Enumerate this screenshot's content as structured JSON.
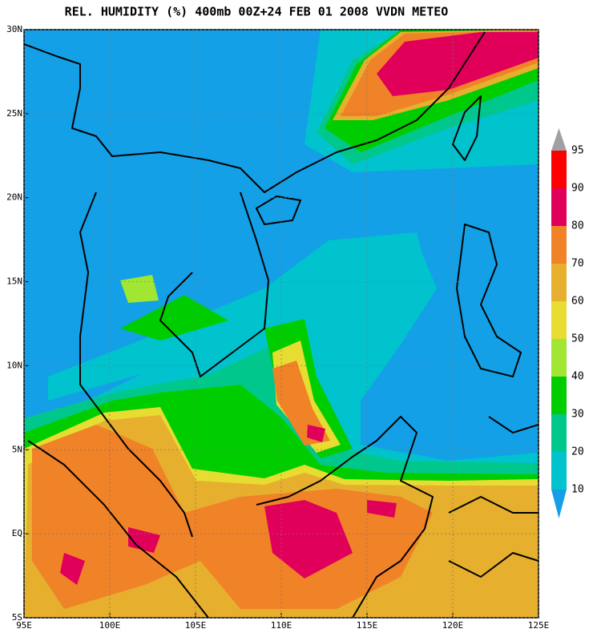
{
  "map": {
    "title": "REL. HUMIDITY (%) 400mb 00Z+24 FEB 01 2008 VVDN METEO",
    "xlim": [
      95,
      125
    ],
    "ylim": [
      -5,
      30
    ],
    "xticks": [
      {
        "value": 95,
        "label": "95E"
      },
      {
        "value": 100,
        "label": "100E"
      },
      {
        "value": 105,
        "label": "105E"
      },
      {
        "value": 110,
        "label": "110E"
      },
      {
        "value": 115,
        "label": "115E"
      },
      {
        "value": 120,
        "label": "120E"
      },
      {
        "value": 125,
        "label": "125E"
      }
    ],
    "yticks": [
      {
        "value": -5,
        "label": "5S"
      },
      {
        "value": 0,
        "label": "EQ"
      },
      {
        "value": 5,
        "label": "5N"
      },
      {
        "value": 10,
        "label": "10N"
      },
      {
        "value": 15,
        "label": "15N"
      },
      {
        "value": 20,
        "label": "20N"
      },
      {
        "value": 25,
        "label": "25N"
      },
      {
        "value": 30,
        "label": "30N"
      }
    ],
    "grid": true,
    "colorbar": {
      "levels": [
        10,
        20,
        30,
        40,
        50,
        60,
        70,
        80,
        90,
        95
      ],
      "colors": [
        "#14a0e6",
        "#00c3cd",
        "#00c88c",
        "#00cd00",
        "#a0e632",
        "#e6dc32",
        "#e6af2d",
        "#f08228",
        "#e0005a",
        "#ff0000",
        "#a0a0a0"
      ]
    }
  }
}
